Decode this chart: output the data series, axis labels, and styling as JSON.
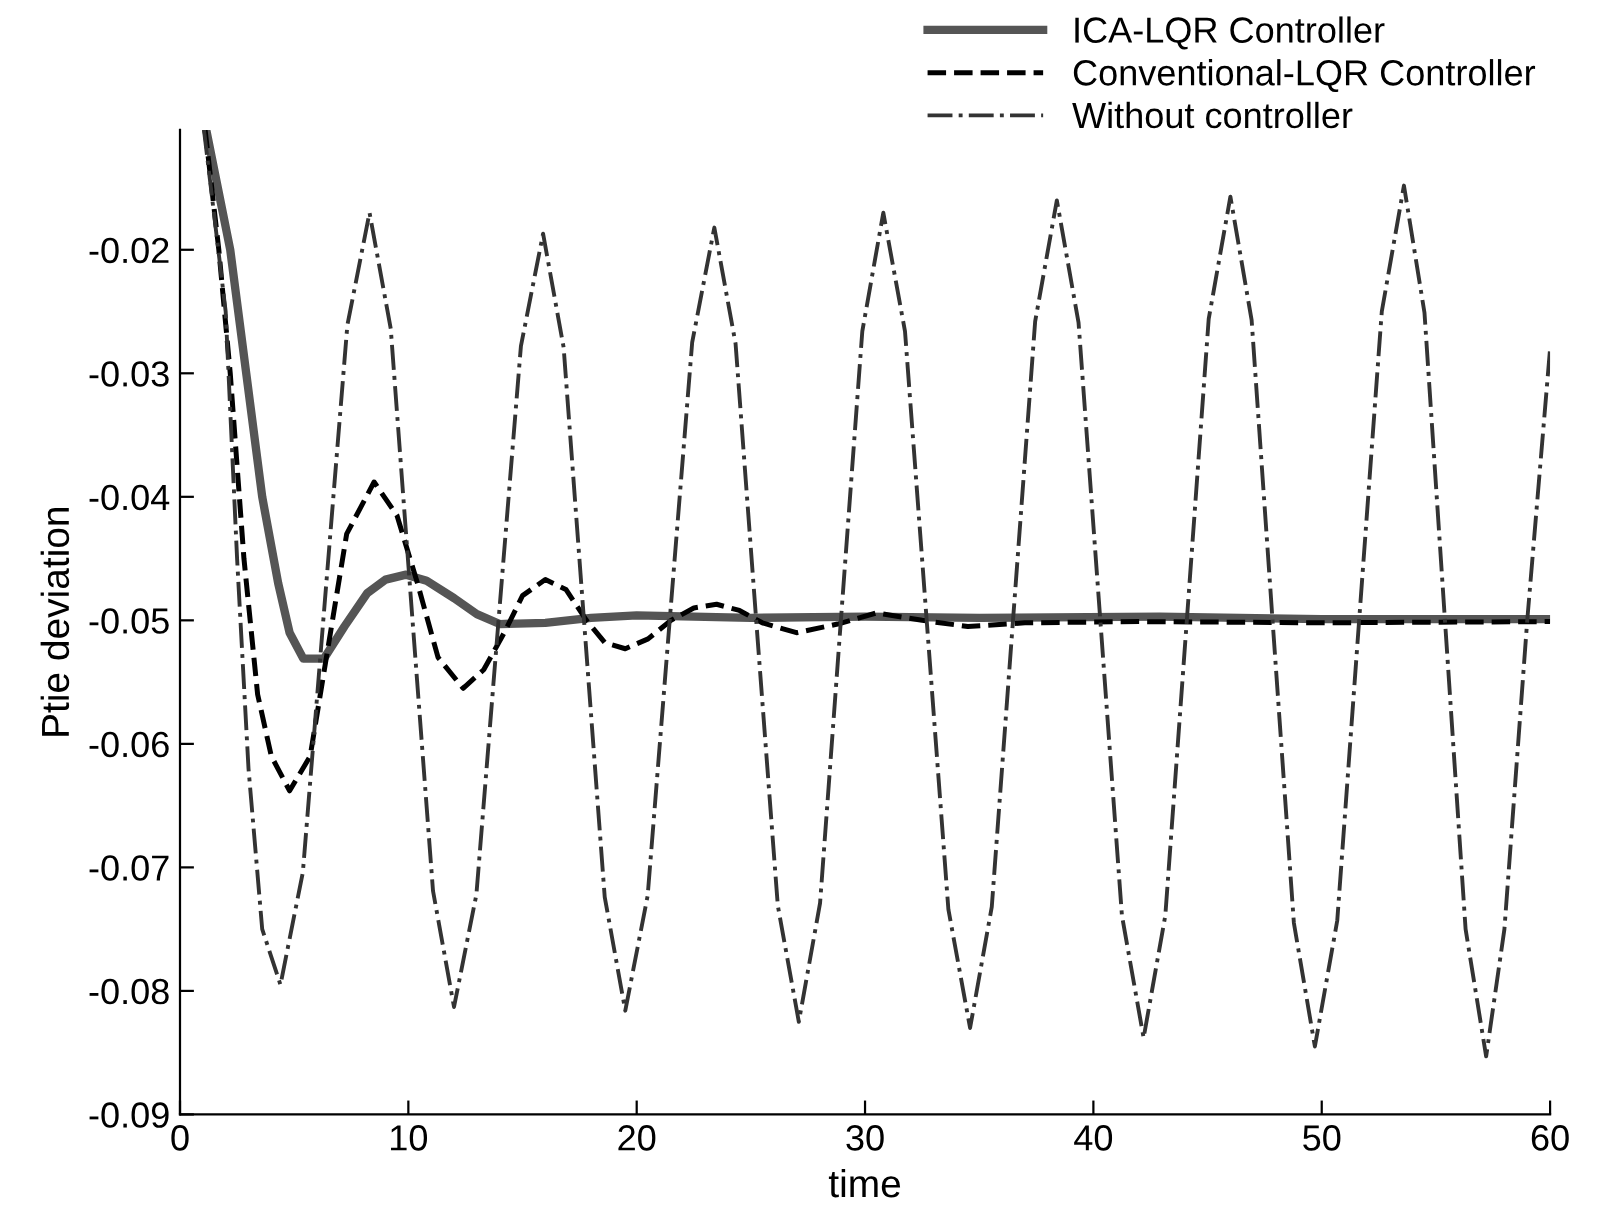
{
  "chart_data": {
    "type": "line",
    "xlabel": "time",
    "ylabel": "Ptie deviation",
    "xlim": [
      0,
      60
    ],
    "ylim": [
      -0.09,
      -0.0103
    ],
    "xticks": [
      0,
      10,
      20,
      30,
      40,
      50,
      60
    ],
    "yticks": [
      -0.09,
      -0.08,
      -0.07,
      -0.06,
      -0.05,
      -0.04,
      -0.03,
      -0.02
    ],
    "grid": false,
    "legend": "top right",
    "marker": "none",
    "series": [
      {
        "name": "ICA-LQR Controller",
        "color": "#555555",
        "line_style": "solid",
        "x": [
          1.15,
          2.2,
          2.9,
          3.6,
          4.3,
          4.8,
          5.4,
          6.3,
          7.2,
          8.2,
          9.0,
          9.9,
          10.8,
          12.0,
          13.0,
          14.0,
          16.0,
          18.0,
          20.0,
          25.0,
          30.0,
          35.0,
          42.9,
          50.0,
          60.0
        ],
        "values": [
          -0.0103,
          -0.02,
          -0.03,
          -0.04,
          -0.047,
          -0.051,
          -0.0531,
          -0.0531,
          -0.0505,
          -0.0478,
          -0.0467,
          -0.0463,
          -0.0468,
          -0.0482,
          -0.0495,
          -0.0503,
          -0.0502,
          -0.0498,
          -0.0496,
          -0.0498,
          -0.0497,
          -0.0498,
          -0.0497,
          -0.0499,
          -0.0499
        ]
      },
      {
        "name": "Conventional-LQR Controller",
        "color": "#000000",
        "line_style": "dashed",
        "x": [
          1.1,
          1.7,
          2.2,
          2.8,
          3.4,
          4.0,
          4.8,
          5.7,
          6.5,
          7.3,
          8.5,
          9.5,
          10.4,
          11.3,
          12.4,
          13.3,
          14.2,
          15.0,
          16.0,
          16.9,
          17.8,
          18.6,
          19.5,
          20.5,
          21.5,
          22.5,
          23.5,
          24.5,
          25.5,
          27.0,
          28.8,
          30.5,
          32.5,
          34.5,
          37.0,
          42.0,
          50.0,
          60.0
        ],
        "values": [
          -0.0103,
          -0.02,
          -0.03,
          -0.045,
          -0.056,
          -0.061,
          -0.0638,
          -0.061,
          -0.052,
          -0.043,
          -0.0388,
          -0.0415,
          -0.047,
          -0.053,
          -0.0555,
          -0.054,
          -0.051,
          -0.048,
          -0.0467,
          -0.0475,
          -0.05,
          -0.0518,
          -0.0523,
          -0.0515,
          -0.05,
          -0.049,
          -0.0487,
          -0.0492,
          -0.0502,
          -0.051,
          -0.0503,
          -0.0494,
          -0.05,
          -0.0505,
          -0.0502,
          -0.0501,
          -0.0502,
          -0.0501
        ]
      },
      {
        "name": "Without controller",
        "color": "#333333",
        "line_style": "dashdot",
        "x": [
          1.05,
          2.0,
          2.5,
          3.0,
          3.6,
          4.4,
          5.38,
          6.35,
          7.33,
          8.3,
          9.23,
          10.15,
          11.08,
          12.0,
          12.98,
          13.95,
          14.93,
          15.9,
          16.8,
          17.7,
          18.6,
          19.5,
          20.48,
          21.45,
          22.43,
          23.4,
          24.33,
          25.25,
          26.18,
          27.1,
          28.03,
          28.95,
          29.88,
          30.8,
          31.75,
          32.7,
          33.65,
          34.6,
          35.55,
          36.5,
          37.45,
          38.4,
          39.35,
          40.3,
          41.25,
          42.2,
          43.15,
          44.1,
          45.05,
          46.0,
          46.93,
          47.85,
          48.78,
          49.7,
          50.68,
          51.65,
          52.63,
          53.6,
          54.5,
          55.4,
          56.3,
          57.2,
          58.0,
          59.0,
          60.0
        ],
        "values": [
          -0.0103,
          -0.025,
          -0.045,
          -0.062,
          -0.075,
          -0.0795,
          -0.0704,
          -0.0483,
          -0.0261,
          -0.017,
          -0.0264,
          -0.0492,
          -0.0719,
          -0.0813,
          -0.0722,
          -0.05,
          -0.0278,
          -0.0187,
          -0.0279,
          -0.0502,
          -0.0724,
          -0.0816,
          -0.0723,
          -0.0499,
          -0.0275,
          -0.0182,
          -0.0276,
          -0.0504,
          -0.0731,
          -0.0825,
          -0.0729,
          -0.0498,
          -0.0266,
          -0.017,
          -0.0266,
          -0.05,
          -0.0734,
          -0.083,
          -0.0732,
          -0.0495,
          -0.0258,
          -0.016,
          -0.0259,
          -0.0499,
          -0.0739,
          -0.0838,
          -0.0739,
          -0.0498,
          -0.0256,
          -0.0157,
          -0.0257,
          -0.0501,
          -0.0745,
          -0.0845,
          -0.0743,
          -0.0497,
          -0.025,
          -0.0148,
          -0.0251,
          -0.0501,
          -0.075,
          -0.0853,
          -0.075,
          -0.05,
          -0.028
        ]
      }
    ]
  }
}
